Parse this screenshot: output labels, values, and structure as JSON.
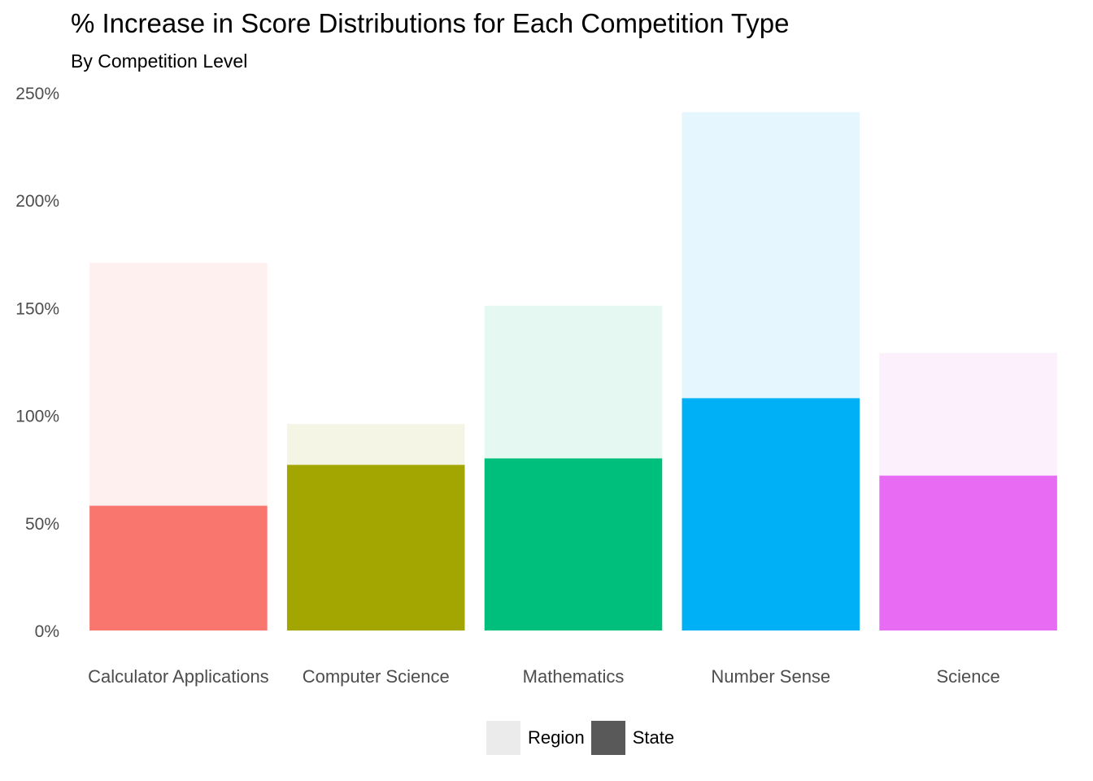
{
  "chart_data": {
    "type": "bar",
    "title": "% Increase in Score Distributions for Each Competition Type",
    "subtitle": "By Competition Level",
    "xlabel": "",
    "ylabel": "",
    "ylim": [
      0,
      250
    ],
    "y_ticks": [
      "0%",
      "50%",
      "100%",
      "150%",
      "200%",
      "250%"
    ],
    "y_tick_values": [
      0,
      50,
      100,
      150,
      200,
      250
    ],
    "categories": [
      "Calculator Applications",
      "Computer Science",
      "Mathematics",
      "Number Sense",
      "Science"
    ],
    "category_colors": [
      "#F8766D",
      "#A3A500",
      "#00BF7D",
      "#00B0F6",
      "#E76BF3"
    ],
    "category_colors_light": [
      "#FEF0EF",
      "#F5F5E5",
      "#E5F8F1",
      "#E5F6FE",
      "#FCF0FD"
    ],
    "series": [
      {
        "name": "Region",
        "values": [
          171,
          96,
          151,
          241,
          129
        ]
      },
      {
        "name": "State",
        "values": [
          58,
          77,
          80,
          108,
          72
        ]
      }
    ],
    "grid": false,
    "legend": {
      "position": "bottom",
      "items": [
        {
          "label": "Region",
          "color": "#EBEBEB"
        },
        {
          "label": "State",
          "color": "#595959"
        }
      ]
    }
  }
}
